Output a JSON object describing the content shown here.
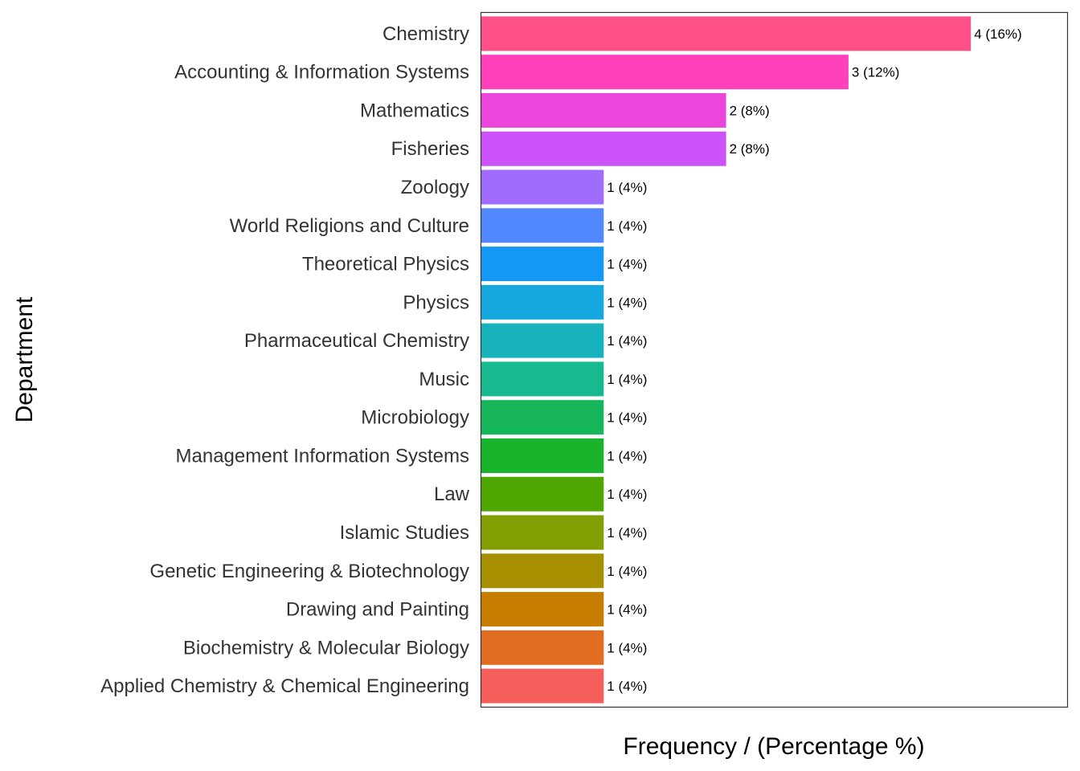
{
  "chart_data": {
    "type": "bar",
    "orientation": "horizontal",
    "title": "",
    "xlabel": "Frequency / (Percentage %)",
    "ylabel": "Department",
    "xlim": [
      0,
      4.2
    ],
    "grid": false,
    "legend": "none",
    "categories": [
      "Chemistry",
      "Accounting & Information Systems",
      "Mathematics",
      "Fisheries",
      "Zoology",
      "World Religions and Culture",
      "Theoretical Physics",
      "Physics",
      "Pharmaceutical Chemistry",
      "Music",
      "Microbiology",
      "Management Information Systems",
      "Law",
      "Islamic Studies",
      "Genetic Engineering & Biotechnology",
      "Drawing and Painting",
      "Biochemistry & Molecular Biology",
      "Applied Chemistry & Chemical Engineering"
    ],
    "values": [
      4,
      3,
      2,
      2,
      1,
      1,
      1,
      1,
      1,
      1,
      1,
      1,
      1,
      1,
      1,
      1,
      1,
      1
    ],
    "data_labels": [
      "4 (16%)",
      "3 (12%)",
      "2 (8%)",
      "2 (8%)",
      "1 (4%)",
      "1 (4%)",
      "1 (4%)",
      "1 (4%)",
      "1 (4%)",
      "1 (4%)",
      "1 (4%)",
      "1 (4%)",
      "1 (4%)",
      "1 (4%)",
      "1 (4%)",
      "1 (4%)",
      "1 (4%)",
      "1 (4%)"
    ],
    "colors": [
      "#FF5088",
      "#FF40BA",
      "#EC45DC",
      "#CC52FA",
      "#9F6CFE",
      "#5187FF",
      "#1399F5",
      "#15A8DE",
      "#17B3BD",
      "#17BA8E",
      "#17B65A",
      "#18B22B",
      "#4EA700",
      "#819E03",
      "#A68F00",
      "#C77E00",
      "#E16D22",
      "#F45F5C"
    ]
  }
}
